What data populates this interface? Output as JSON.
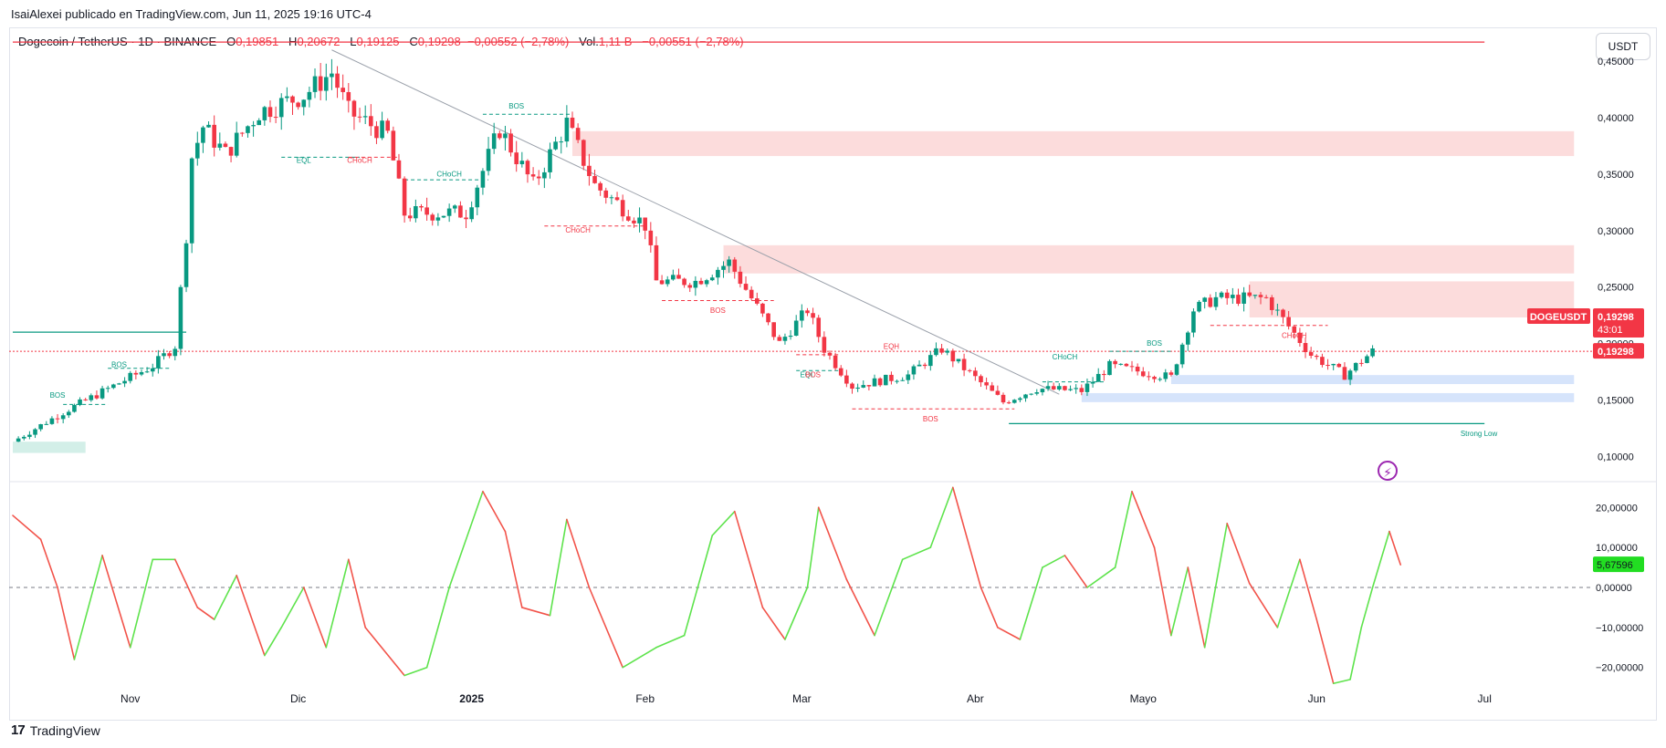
{
  "header": {
    "published_by": "IsaiAlexei publicado en TradingView.com, Jun 11, 2025 19:16 UTC-4",
    "symbol": "Dogecoin / TetherUS · 1D · BINANCE",
    "o_label": "O",
    "o_value": "0,19851",
    "h_label": "H",
    "h_value": "0,20672",
    "l_label": "L",
    "l_value": "0,19125",
    "c_label": "C",
    "c_value": "0,19298",
    "change": "−0,00552 (−2,78%)",
    "vol_label": "Vol.",
    "vol_value": "1,11 B",
    "vol_change": "−0,00551 (−2,78%)",
    "currency": "USDT"
  },
  "footer": {
    "brand": "TradingView",
    "brand_mark": "17"
  },
  "colors": {
    "up": "#089981",
    "down": "#f23645",
    "osc_up": "#5ee34c",
    "osc_down": "#f2534a",
    "zone_red": "#fcdcdc",
    "zone_blue": "#d6e4fb",
    "zone_green": "#d3efe8"
  },
  "chart_data": [
    {
      "type": "candlestick",
      "title": "Dogecoin / TetherUS · 1D · BINANCE",
      "ylim": [
        0.08,
        0.48
      ],
      "y_ticks": [
        "0,45000",
        "0,40000",
        "0,35000",
        "0,30000",
        "0,25000",
        "0,20000",
        "0,15000",
        "0,10000"
      ],
      "y_tick_values": [
        0.45,
        0.4,
        0.35,
        0.3,
        0.25,
        0.2,
        0.15,
        0.1
      ],
      "x_ticks": [
        "Nov",
        "Dic",
        "2025",
        "Feb",
        "Mar",
        "Abr",
        "Mayo",
        "Jun",
        "Jul"
      ],
      "x_tick_dates": [
        "2024-11-01",
        "2024-12-01",
        "2025-01-01",
        "2025-02-01",
        "2025-03-01",
        "2025-04-01",
        "2025-05-01",
        "2025-06-01",
        "2025-07-01"
      ],
      "last_price_label": "DOGEUSDT",
      "last_price": "0,19298",
      "countdown": "43:01",
      "price_line_label": "0,19298",
      "anchors": [
        {
          "date": "2024-10-11",
          "close": 0.113
        },
        {
          "date": "2024-10-20",
          "close": 0.139
        },
        {
          "date": "2024-10-30",
          "close": 0.165
        },
        {
          "date": "2024-11-05",
          "close": 0.18
        },
        {
          "date": "2024-11-09",
          "close": 0.198
        },
        {
          "date": "2024-11-11",
          "close": 0.296
        },
        {
          "date": "2024-11-12",
          "close": 0.365
        },
        {
          "date": "2024-11-14",
          "close": 0.392
        },
        {
          "date": "2024-11-18",
          "close": 0.368
        },
        {
          "date": "2024-11-24",
          "close": 0.405
        },
        {
          "date": "2024-12-02",
          "close": 0.42
        },
        {
          "date": "2024-12-07",
          "close": 0.44
        },
        {
          "date": "2024-12-10",
          "close": 0.405
        },
        {
          "date": "2024-12-17",
          "close": 0.385
        },
        {
          "date": "2024-12-20",
          "close": 0.315
        },
        {
          "date": "2024-12-31",
          "close": 0.316
        },
        {
          "date": "2025-01-06",
          "close": 0.39
        },
        {
          "date": "2025-01-12",
          "close": 0.34
        },
        {
          "date": "2025-01-18",
          "close": 0.395
        },
        {
          "date": "2025-01-23",
          "close": 0.34
        },
        {
          "date": "2025-02-01",
          "close": 0.305
        },
        {
          "date": "2025-02-03",
          "close": 0.255
        },
        {
          "date": "2025-02-10",
          "close": 0.255
        },
        {
          "date": "2025-02-16",
          "close": 0.272
        },
        {
          "date": "2025-02-25",
          "close": 0.2
        },
        {
          "date": "2025-03-02",
          "close": 0.23
        },
        {
          "date": "2025-03-05",
          "close": 0.195
        },
        {
          "date": "2025-03-10",
          "close": 0.162
        },
        {
          "date": "2025-03-20",
          "close": 0.172
        },
        {
          "date": "2025-03-26",
          "close": 0.195
        },
        {
          "date": "2025-04-06",
          "close": 0.148
        },
        {
          "date": "2025-04-12",
          "close": 0.16
        },
        {
          "date": "2025-04-20",
          "close": 0.158
        },
        {
          "date": "2025-04-25",
          "close": 0.18
        },
        {
          "date": "2025-05-06",
          "close": 0.17
        },
        {
          "date": "2025-05-10",
          "close": 0.23
        },
        {
          "date": "2025-05-14",
          "close": 0.24
        },
        {
          "date": "2025-05-23",
          "close": 0.24
        },
        {
          "date": "2025-05-31",
          "close": 0.19
        },
        {
          "date": "2025-06-06",
          "close": 0.172
        },
        {
          "date": "2025-06-11",
          "close": 0.193
        }
      ],
      "annotations": [
        {
          "text": "BOS",
          "date": "2024-10-30",
          "price": 0.179,
          "color": "up"
        },
        {
          "text": "BOS",
          "date": "2024-10-19",
          "price": 0.152,
          "color": "up"
        },
        {
          "text": "EQL",
          "date": "2024-12-02",
          "price": 0.36,
          "color": "up"
        },
        {
          "text": "CHoCH",
          "date": "2024-12-12",
          "price": 0.36,
          "color": "down"
        },
        {
          "text": "CHoCH",
          "date": "2024-12-28",
          "price": 0.348,
          "color": "up"
        },
        {
          "text": "BOS",
          "date": "2025-01-09",
          "price": 0.408,
          "color": "up"
        },
        {
          "text": "CHoCH",
          "date": "2025-01-20",
          "price": 0.298,
          "color": "down"
        },
        {
          "text": "BOS",
          "date": "2025-02-14",
          "price": 0.227,
          "color": "down"
        },
        {
          "text": "EQL",
          "date": "2025-03-02",
          "price": 0.17,
          "color": "up"
        },
        {
          "text": "BOS",
          "date": "2025-03-03",
          "price": 0.17,
          "color": "down"
        },
        {
          "text": "EQH",
          "date": "2025-03-17",
          "price": 0.195,
          "color": "down"
        },
        {
          "text": "BOS",
          "date": "2025-03-24",
          "price": 0.131,
          "color": "down"
        },
        {
          "text": "CHoCH",
          "date": "2025-04-17",
          "price": 0.186,
          "color": "up"
        },
        {
          "text": "BOS",
          "date": "2025-05-03",
          "price": 0.198,
          "color": "up"
        },
        {
          "text": "CHoCH",
          "date": "2025-05-28",
          "price": 0.205,
          "color": "down"
        },
        {
          "text": "Strong Low",
          "date": "2025-06-30",
          "price": 0.118,
          "color": "up"
        }
      ],
      "zones": [
        {
          "from": "2025-01-19",
          "to": "2025-07-17",
          "low": 0.366,
          "high": 0.388,
          "color": "zone_red"
        },
        {
          "from": "2025-02-15",
          "to": "2025-07-17",
          "low": 0.262,
          "high": 0.287,
          "color": "zone_red"
        },
        {
          "from": "2025-05-20",
          "to": "2025-07-17",
          "low": 0.223,
          "high": 0.255,
          "color": "zone_red"
        },
        {
          "from": "2025-05-06",
          "to": "2025-07-17",
          "low": 0.164,
          "high": 0.172,
          "color": "zone_blue"
        },
        {
          "from": "2025-04-20",
          "to": "2025-07-17",
          "low": 0.148,
          "high": 0.156,
          "color": "zone_blue"
        },
        {
          "from": "2024-10-11",
          "to": "2024-10-24",
          "low": 0.103,
          "high": 0.113,
          "color": "zone_green"
        }
      ]
    },
    {
      "type": "line",
      "title": "",
      "ylim": [
        -26,
        26
      ],
      "y_ticks": [
        "20,00000",
        "10,00000",
        "0,00000",
        "−10,00000",
        "−20,00000"
      ],
      "y_tick_values": [
        20,
        10,
        0,
        -10,
        -20
      ],
      "current_value": "5,67596",
      "anchors": [
        {
          "date": "2024-10-11",
          "value": 18
        },
        {
          "date": "2024-10-16",
          "value": 12
        },
        {
          "date": "2024-10-19",
          "value": 0
        },
        {
          "date": "2024-10-22",
          "value": -18
        },
        {
          "date": "2024-10-27",
          "value": 8
        },
        {
          "date": "2024-11-01",
          "value": -15
        },
        {
          "date": "2024-11-05",
          "value": 7
        },
        {
          "date": "2024-11-09",
          "value": 7
        },
        {
          "date": "2024-11-13",
          "value": -5
        },
        {
          "date": "2024-11-16",
          "value": -8
        },
        {
          "date": "2024-11-20",
          "value": 3
        },
        {
          "date": "2024-11-25",
          "value": -17
        },
        {
          "date": "2024-11-28",
          "value": -10
        },
        {
          "date": "2024-12-02",
          "value": 0
        },
        {
          "date": "2024-12-06",
          "value": -15
        },
        {
          "date": "2024-12-10",
          "value": 7
        },
        {
          "date": "2024-12-13",
          "value": -10
        },
        {
          "date": "2024-12-20",
          "value": -22
        },
        {
          "date": "2024-12-24",
          "value": -20
        },
        {
          "date": "2024-12-28",
          "value": 0
        },
        {
          "date": "2025-01-03",
          "value": 24
        },
        {
          "date": "2025-01-07",
          "value": 14
        },
        {
          "date": "2025-01-10",
          "value": -5
        },
        {
          "date": "2025-01-15",
          "value": -7
        },
        {
          "date": "2025-01-18",
          "value": 17
        },
        {
          "date": "2025-01-22",
          "value": 0
        },
        {
          "date": "2025-01-28",
          "value": -20
        },
        {
          "date": "2025-02-03",
          "value": -15
        },
        {
          "date": "2025-02-08",
          "value": -12
        },
        {
          "date": "2025-02-13",
          "value": 13
        },
        {
          "date": "2025-02-17",
          "value": 19
        },
        {
          "date": "2025-02-22",
          "value": -5
        },
        {
          "date": "2025-02-26",
          "value": -13
        },
        {
          "date": "2025-03-02",
          "value": 0
        },
        {
          "date": "2025-03-04",
          "value": 20
        },
        {
          "date": "2025-03-09",
          "value": 2
        },
        {
          "date": "2025-03-14",
          "value": -12
        },
        {
          "date": "2025-03-19",
          "value": 7
        },
        {
          "date": "2025-03-24",
          "value": 10
        },
        {
          "date": "2025-03-28",
          "value": 25
        },
        {
          "date": "2025-04-02",
          "value": 0
        },
        {
          "date": "2025-04-05",
          "value": -10
        },
        {
          "date": "2025-04-09",
          "value": -13
        },
        {
          "date": "2025-04-13",
          "value": 5
        },
        {
          "date": "2025-04-17",
          "value": 8
        },
        {
          "date": "2025-04-21",
          "value": 0
        },
        {
          "date": "2025-04-26",
          "value": 5
        },
        {
          "date": "2025-04-29",
          "value": 24
        },
        {
          "date": "2025-05-03",
          "value": 10
        },
        {
          "date": "2025-05-06",
          "value": -12
        },
        {
          "date": "2025-05-09",
          "value": 5
        },
        {
          "date": "2025-05-12",
          "value": -15
        },
        {
          "date": "2025-05-16",
          "value": 16
        },
        {
          "date": "2025-05-20",
          "value": 1
        },
        {
          "date": "2025-05-25",
          "value": -10
        },
        {
          "date": "2025-05-29",
          "value": 7
        },
        {
          "date": "2025-06-01",
          "value": -8
        },
        {
          "date": "2025-06-04",
          "value": -24
        },
        {
          "date": "2025-06-07",
          "value": -23
        },
        {
          "date": "2025-06-09",
          "value": -10
        },
        {
          "date": "2025-06-11",
          "value": 0
        },
        {
          "date": "2025-06-14",
          "value": 14
        },
        {
          "date": "2025-06-16",
          "value": 5.68
        }
      ]
    }
  ]
}
